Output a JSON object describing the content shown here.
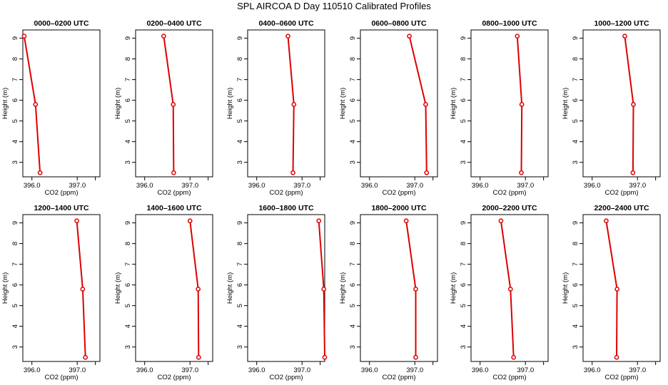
{
  "page": {
    "title": "SPL AIRCOA D  Day 110510  Calibrated Profiles"
  },
  "colors": {
    "profile": "#dd0000",
    "axis": "#000000"
  },
  "chart_data": [
    {
      "type": "line",
      "title": "0000–0200 UTC",
      "xlabel": "CO2 (ppm)",
      "ylabel": "Height (m)",
      "xlim": [
        395.8,
        397.5
      ],
      "ylim": [
        2.3,
        9.4
      ],
      "xticks": [
        396.0,
        397.0
      ],
      "xtick_labels": [
        "396.0",
        "397.0"
      ],
      "yticks": [
        3,
        4,
        5,
        6,
        7,
        8,
        9
      ],
      "points": [
        {
          "x": 395.83,
          "y": 9.1
        },
        {
          "x": 396.08,
          "y": 5.8
        },
        {
          "x": 396.18,
          "y": 2.5
        }
      ]
    },
    {
      "type": "line",
      "title": "0200–0400 UTC",
      "xlabel": "CO2 (ppm)",
      "ylabel": "Height (m)",
      "xlim": [
        395.8,
        397.5
      ],
      "ylim": [
        2.3,
        9.4
      ],
      "xticks": [
        396.0,
        397.0
      ],
      "xtick_labels": [
        "396.0",
        "397.0"
      ],
      "yticks": [
        3,
        4,
        5,
        6,
        7,
        8,
        9
      ],
      "points": [
        {
          "x": 396.42,
          "y": 9.1
        },
        {
          "x": 396.63,
          "y": 5.8
        },
        {
          "x": 396.64,
          "y": 2.5
        }
      ]
    },
    {
      "type": "line",
      "title": "0400–0600 UTC",
      "xlabel": "CO2 (ppm)",
      "ylabel": "Height (m)",
      "xlim": [
        395.8,
        397.5
      ],
      "ylim": [
        2.3,
        9.4
      ],
      "xticks": [
        396.0,
        397.0
      ],
      "xtick_labels": [
        "396.0",
        "397.0"
      ],
      "yticks": [
        3,
        4,
        5,
        6,
        7,
        8,
        9
      ],
      "points": [
        {
          "x": 396.69,
          "y": 9.1
        },
        {
          "x": 396.82,
          "y": 5.8
        },
        {
          "x": 396.8,
          "y": 2.5
        }
      ]
    },
    {
      "type": "line",
      "title": "0600–0800 UTC",
      "xlabel": "CO2 (ppm)",
      "ylabel": "Height (m)",
      "xlim": [
        395.8,
        397.5
      ],
      "ylim": [
        2.3,
        9.4
      ],
      "xticks": [
        396.0,
        397.0
      ],
      "xtick_labels": [
        "396.0",
        "397.0"
      ],
      "yticks": [
        3,
        4,
        5,
        6,
        7,
        8,
        9
      ],
      "points": [
        {
          "x": 396.88,
          "y": 9.1
        },
        {
          "x": 397.24,
          "y": 5.8
        },
        {
          "x": 397.26,
          "y": 2.5
        }
      ]
    },
    {
      "type": "line",
      "title": "0800–1000 UTC",
      "xlabel": "CO2 (ppm)",
      "ylabel": "Height (m)",
      "xlim": [
        395.8,
        397.5
      ],
      "ylim": [
        2.3,
        9.4
      ],
      "xticks": [
        396.0,
        397.0
      ],
      "xtick_labels": [
        "396.0",
        "397.0"
      ],
      "yticks": [
        3,
        4,
        5,
        6,
        7,
        8,
        9
      ],
      "points": [
        {
          "x": 396.82,
          "y": 9.1
        },
        {
          "x": 396.92,
          "y": 5.8
        },
        {
          "x": 396.91,
          "y": 2.5
        }
      ]
    },
    {
      "type": "line",
      "title": "1000–1200 UTC",
      "xlabel": "CO2 (ppm)",
      "ylabel": "Height (m)",
      "xlim": [
        395.8,
        397.5
      ],
      "ylim": [
        2.3,
        9.4
      ],
      "xticks": [
        396.0,
        397.0
      ],
      "xtick_labels": [
        "396.0",
        "397.0"
      ],
      "yticks": [
        3,
        4,
        5,
        6,
        7,
        8,
        9
      ],
      "points": [
        {
          "x": 396.72,
          "y": 9.1
        },
        {
          "x": 396.91,
          "y": 5.8
        },
        {
          "x": 396.9,
          "y": 2.5
        }
      ]
    },
    {
      "type": "line",
      "title": "1200–1400 UTC",
      "xlabel": "CO2 (ppm)",
      "ylabel": "Height (m)",
      "xlim": [
        395.8,
        397.5
      ],
      "ylim": [
        2.3,
        9.4
      ],
      "xticks": [
        396.0,
        397.0
      ],
      "xtick_labels": [
        "396.0",
        "397.0"
      ],
      "yticks": [
        3,
        4,
        5,
        6,
        7,
        8,
        9
      ],
      "points": [
        {
          "x": 396.99,
          "y": 9.1
        },
        {
          "x": 397.12,
          "y": 5.8
        },
        {
          "x": 397.18,
          "y": 2.5
        }
      ]
    },
    {
      "type": "line",
      "title": "1400–1600 UTC",
      "xlabel": "CO2 (ppm)",
      "ylabel": "Height (m)",
      "xlim": [
        395.8,
        397.5
      ],
      "ylim": [
        2.3,
        9.4
      ],
      "xticks": [
        396.0,
        397.0
      ],
      "xtick_labels": [
        "396.0",
        "397.0"
      ],
      "yticks": [
        3,
        4,
        5,
        6,
        7,
        8,
        9
      ],
      "points": [
        {
          "x": 397.0,
          "y": 9.1
        },
        {
          "x": 397.18,
          "y": 5.8
        },
        {
          "x": 397.19,
          "y": 2.5
        }
      ]
    },
    {
      "type": "line",
      "title": "1600–1800 UTC",
      "xlabel": "CO2 (ppm)",
      "ylabel": "Height (m)",
      "xlim": [
        395.8,
        397.5
      ],
      "ylim": [
        2.3,
        9.4
      ],
      "xticks": [
        396.0,
        397.0
      ],
      "xtick_labels": [
        "396.0",
        "397.0"
      ],
      "yticks": [
        3,
        4,
        5,
        6,
        7,
        8,
        9
      ],
      "points": [
        {
          "x": 397.37,
          "y": 9.1
        },
        {
          "x": 397.48,
          "y": 5.8
        },
        {
          "x": 397.5,
          "y": 2.5
        }
      ]
    },
    {
      "type": "line",
      "title": "1800–2000 UTC",
      "xlabel": "CO2 (ppm)",
      "ylabel": "Height (m)",
      "xlim": [
        395.8,
        397.5
      ],
      "ylim": [
        2.3,
        9.4
      ],
      "xticks": [
        396.0,
        397.0
      ],
      "xtick_labels": [
        "396.0",
        "397.0"
      ],
      "yticks": [
        3,
        4,
        5,
        6,
        7,
        8,
        9
      ],
      "points": [
        {
          "x": 396.81,
          "y": 9.1
        },
        {
          "x": 397.02,
          "y": 5.8
        },
        {
          "x": 397.02,
          "y": 2.5
        }
      ]
    },
    {
      "type": "line",
      "title": "2000–2200 UTC",
      "xlabel": "CO2 (ppm)",
      "ylabel": "Height (m)",
      "xlim": [
        395.8,
        397.5
      ],
      "ylim": [
        2.3,
        9.4
      ],
      "xticks": [
        396.0,
        397.0
      ],
      "xtick_labels": [
        "396.0",
        "397.0"
      ],
      "yticks": [
        3,
        4,
        5,
        6,
        7,
        8,
        9
      ],
      "points": [
        {
          "x": 396.46,
          "y": 9.1
        },
        {
          "x": 396.67,
          "y": 5.8
        },
        {
          "x": 396.74,
          "y": 2.5
        }
      ]
    },
    {
      "type": "line",
      "title": "2200–2400 UTC",
      "xlabel": "CO2 (ppm)",
      "ylabel": "Height (m)",
      "xlim": [
        395.8,
        397.5
      ],
      "ylim": [
        2.3,
        9.4
      ],
      "xticks": [
        396.0,
        397.0
      ],
      "xtick_labels": [
        "396.0",
        "397.0"
      ],
      "yticks": [
        3,
        4,
        5,
        6,
        7,
        8,
        9
      ],
      "points": [
        {
          "x": 396.31,
          "y": 9.1
        },
        {
          "x": 396.55,
          "y": 5.8
        },
        {
          "x": 396.54,
          "y": 2.5
        }
      ]
    }
  ]
}
